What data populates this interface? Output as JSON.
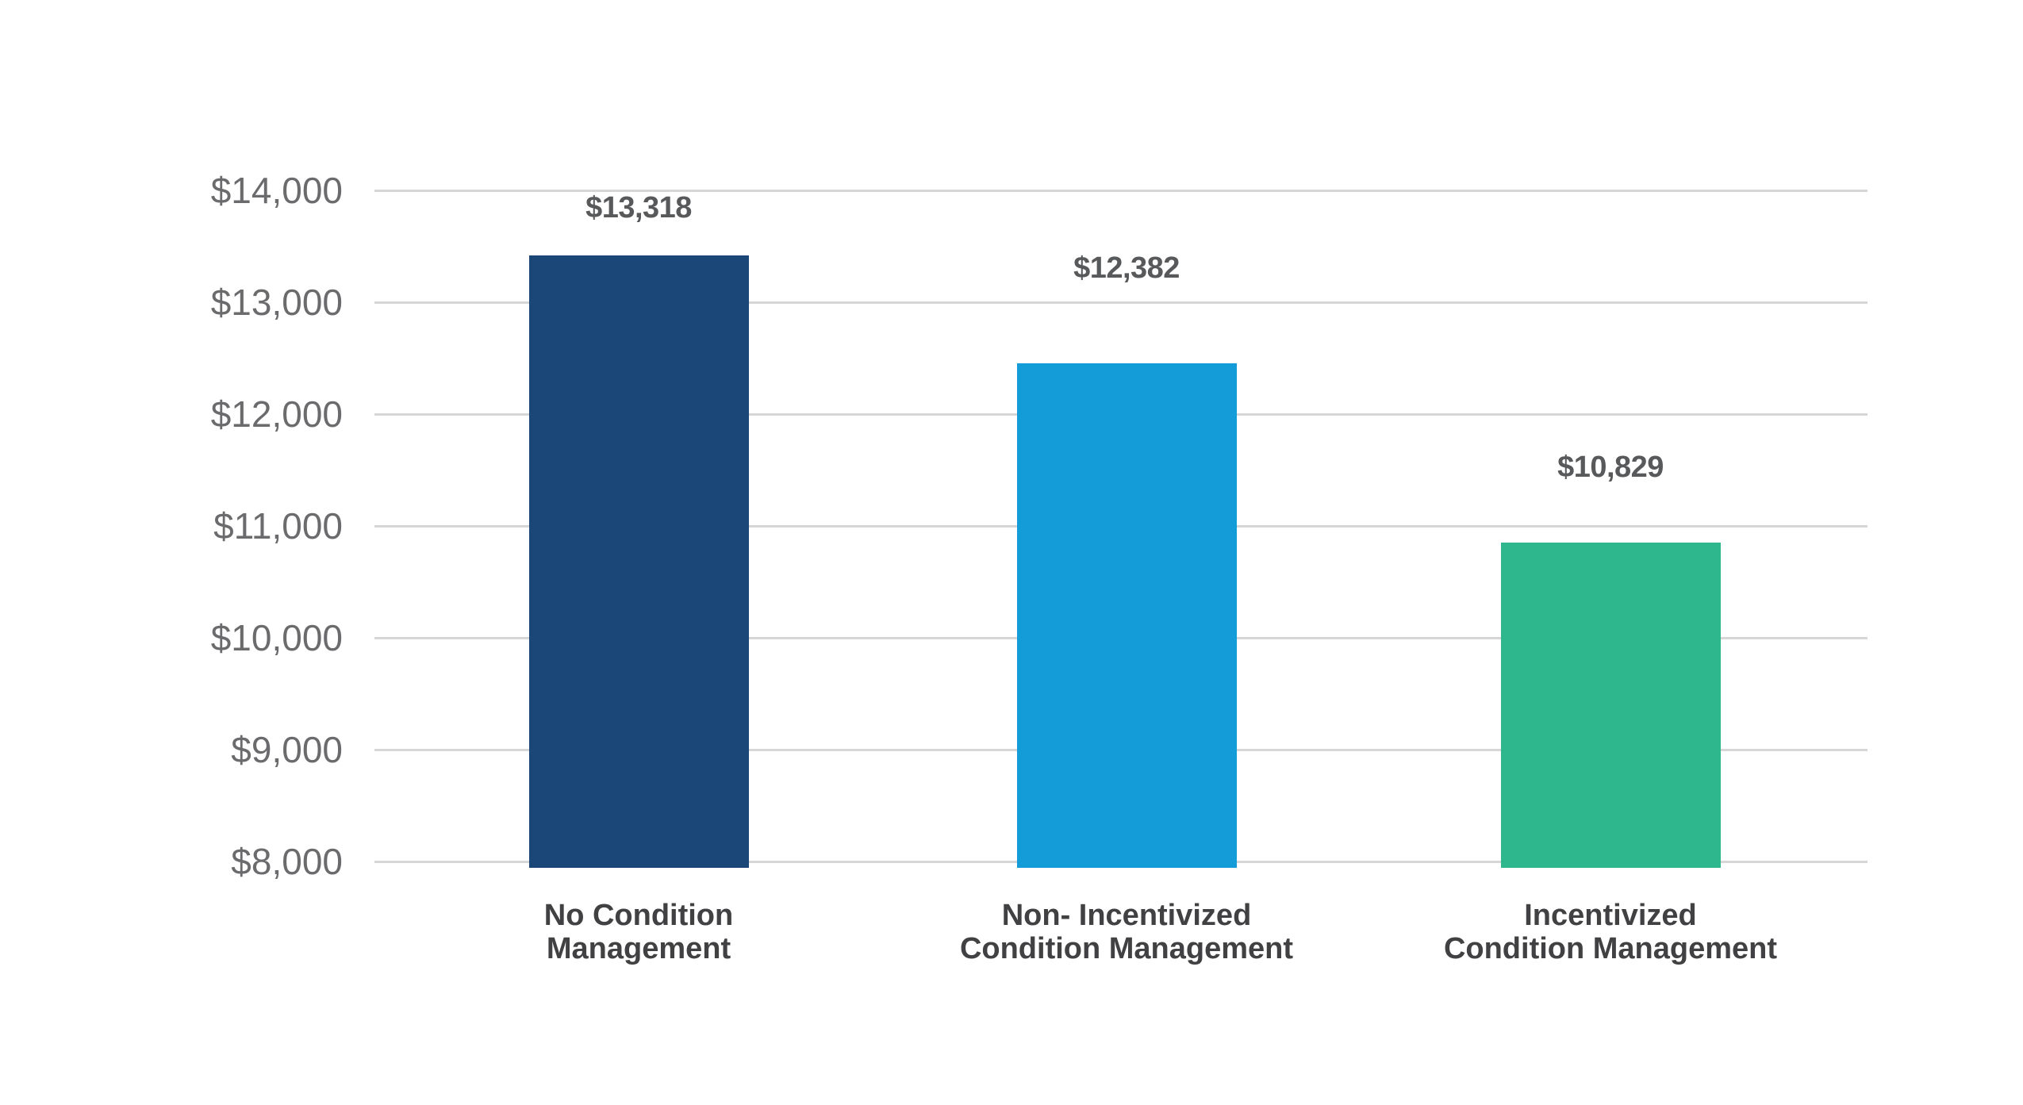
{
  "chart_data": {
    "type": "bar",
    "title": "",
    "xlabel": "",
    "ylabel": "",
    "categories": [
      [
        "No Condition",
        "Management"
      ],
      [
        "Non- Incentivized",
        "Condition Management"
      ],
      [
        "Incentivized",
        "Condition Management"
      ]
    ],
    "values": [
      13318,
      12382,
      10829
    ],
    "value_labels": [
      "$13,318",
      "$12,382",
      "$10,829"
    ],
    "ylim": [
      8000,
      14000
    ],
    "ytick_step": 1000,
    "ytick_labels": [
      "$14,000",
      "$13,000",
      "$12,000",
      "$11,000",
      "$10,000",
      "$9,000",
      "$8,000"
    ],
    "grid": true,
    "legend": false,
    "bar_colors": [
      "#1a4678",
      "#149cd8",
      "#2eb78d"
    ],
    "colors": {
      "background": "#ffffff",
      "gridline": "#d6d6d6",
      "axis_label": "#6b6b6e",
      "value_label": "#58595b",
      "category_label": "#414042"
    }
  }
}
